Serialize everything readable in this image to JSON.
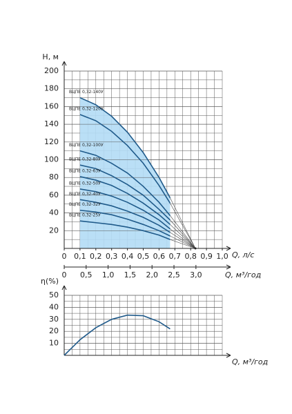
{
  "chart_data": [
    {
      "type": "line",
      "y_label": "Н, м",
      "x_label": "Q, л/с",
      "x2_label": "Q, м³/год",
      "x": [
        0.1,
        0.2,
        0.3,
        0.4,
        0.5,
        0.6,
        0.67
      ],
      "series": [
        {
          "name": "ВЦПЕ 0,32-140У",
          "color": "#1f5a8a",
          "values": [
            170,
            162,
            149,
            131,
            108,
            80,
            57
          ]
        },
        {
          "name": "ВЦПЕ 0,32-120У",
          "color": "#1f5a8a",
          "values": [
            151,
            144,
            132,
            116,
            96,
            71,
            51
          ]
        },
        {
          "name": "ВЦПЕ 0,32-100У",
          "color": "#1f5a8a",
          "values": [
            110,
            105,
            96,
            85,
            70,
            52,
            37
          ]
        },
        {
          "name": "ВЦПЕ 0,32-80У",
          "color": "#1f5a8a",
          "values": [
            94,
            90,
            82,
            72,
            60,
            44,
            32
          ]
        },
        {
          "name": "ВЦПЕ 0,32-63У",
          "color": "#1f5a8a",
          "values": [
            81,
            77,
            71,
            62,
            51,
            38,
            27
          ]
        },
        {
          "name": "ВЦПЕ 0,32-50У",
          "color": "#1f5a8a",
          "values": [
            67,
            64,
            59,
            52,
            43,
            32,
            22
          ]
        },
        {
          "name": "ВЦПЕ 0,32-40У",
          "color": "#1f5a8a",
          "values": [
            55,
            52,
            48,
            42,
            35,
            26,
            18
          ]
        },
        {
          "name": "ВЦПЕ 0,32-32У",
          "color": "#1f5a8a",
          "values": [
            43,
            41,
            38,
            33,
            27,
            20,
            14
          ]
        },
        {
          "name": "ВЦПЕ 0,32-25У",
          "color": "#1f5a8a",
          "values": [
            31,
            29,
            27,
            24,
            20,
            15,
            10
          ]
        }
      ],
      "convergence_q": 0.83,
      "shade_color": "#b3dcf5",
      "xlim": [
        0,
        1.0
      ],
      "xticks": [
        0,
        {
          "value": 0.1,
          "label": "0,1"
        },
        {
          "value": 0.2,
          "label": "0,2"
        },
        {
          "value": 0.3,
          "label": "0,3"
        },
        {
          "value": 0.4,
          "label": "0,4"
        },
        {
          "value": 0.5,
          "label": "0,5"
        },
        {
          "value": 0.6,
          "label": "0,6"
        },
        {
          "value": 0.7,
          "label": "0,7"
        },
        {
          "value": 0.8,
          "label": "0,8"
        },
        {
          "value": 0.9,
          "label": "0,9"
        },
        {
          "value": 1.0,
          "label": "1,0"
        }
      ],
      "x2lim": [
        0,
        3.6
      ],
      "x2ticks": [
        0,
        {
          "value": 0.5,
          "label": "0,5"
        },
        {
          "value": 1.0,
          "label": "1,0"
        },
        {
          "value": 1.5,
          "label": "1,5"
        },
        {
          "value": 2.0,
          "label": "2,0"
        },
        {
          "value": 2.5,
          "label": "2,5"
        },
        {
          "value": 3.0,
          "label": "3,0"
        }
      ],
      "ylim": [
        0,
        200
      ],
      "yticks": [
        20,
        40,
        60,
        80,
        100,
        120,
        140,
        160,
        180,
        200
      ],
      "grid": true
    },
    {
      "type": "line",
      "y_label": "η(%)",
      "x_label": "Q, м³/год",
      "x": [
        0,
        0.1,
        0.2,
        0.3,
        0.4,
        0.5,
        0.6,
        0.67
      ],
      "series": [
        {
          "name": "η",
          "color": "#1f5a8a",
          "values": [
            0,
            13,
            23,
            30,
            33.5,
            33,
            28,
            22
          ]
        }
      ],
      "xlim": [
        0,
        1.0
      ],
      "ylim": [
        0,
        50
      ],
      "yticks": [
        10,
        20,
        30,
        40,
        50
      ],
      "grid": true
    }
  ]
}
